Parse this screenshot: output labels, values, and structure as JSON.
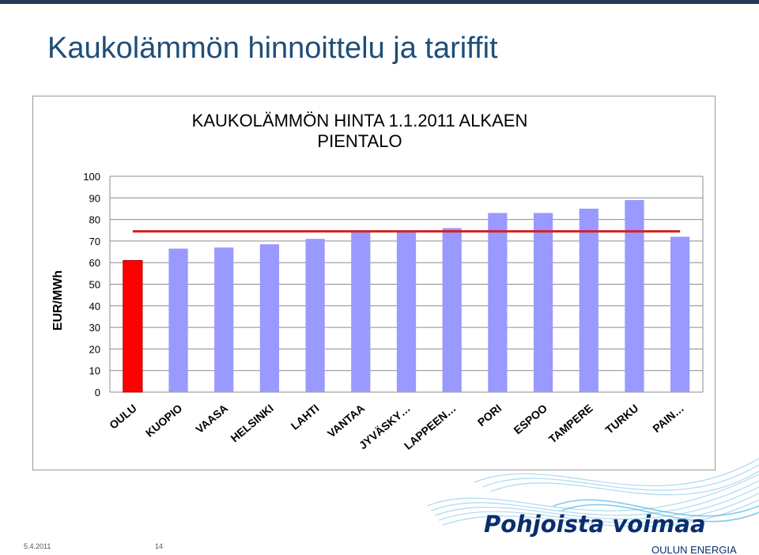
{
  "slide": {
    "title": "Kaukolämmön hinnoittelu ja tariffit",
    "date": "5.4.2011",
    "page_number": "14"
  },
  "logo": {
    "main": "Pohjoista voimaa",
    "sub": "OULUN ENERGIA"
  },
  "colors": {
    "title": "#1f4e79",
    "bar_default": "#9999ff",
    "bar_highlight": "#ff0000",
    "average_line": "#d62020",
    "grid": "#8c8c8c",
    "logo": "#0a2e6e"
  },
  "chart_data": {
    "type": "bar",
    "title": [
      "KAUKOLÄMMÖN HINTA 1.1.2011 ALKAEN",
      "PIENTALO"
    ],
    "ylabel": "EUR/MWh",
    "xlabel": "",
    "ylim": [
      0,
      100
    ],
    "yticks": [
      "0",
      "10",
      "20",
      "30",
      "40",
      "50",
      "60",
      "70",
      "80",
      "90",
      "100"
    ],
    "grid": true,
    "categories": [
      "OULU",
      "KUOPIO",
      "VAASA",
      "HELSINKI",
      "LAHTI",
      "VANTAA",
      "JYVÄSKY…",
      "LAPPEEN…",
      "PORI",
      "ESPOO",
      "TAMPERE",
      "TURKU",
      "PAIN…"
    ],
    "values": [
      61,
      66.5,
      67,
      68.5,
      71,
      74,
      74.5,
      76,
      83,
      83,
      85,
      89,
      72
    ],
    "highlight_index": 0,
    "average_line_value": 74.5
  }
}
